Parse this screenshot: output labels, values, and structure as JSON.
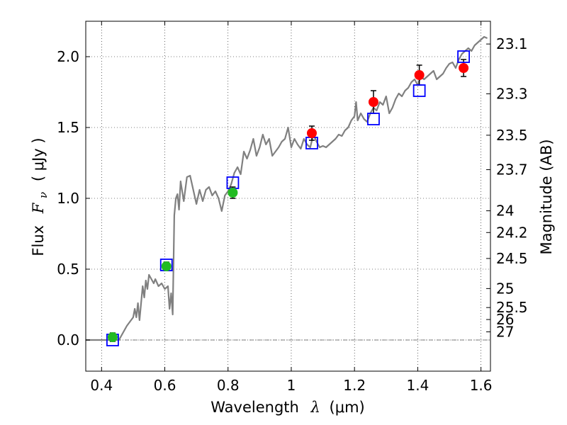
{
  "chart_data": {
    "type": "scatter",
    "xlabel_text": "Wavelength",
    "xlabel_symbol": "λ",
    "xlabel_unit": "(μm)",
    "ylabel_text": "Flux",
    "ylabel_symbol": "F",
    "ylabel_subscript": "ν",
    "ylabel_unit": "( μJy )",
    "y2label": "Magnitude (AB)",
    "xlim": [
      0.35,
      1.63
    ],
    "ylim": [
      -0.22,
      2.25
    ],
    "grid": true,
    "x_ticks": [
      0.4,
      0.6,
      0.8,
      1.0,
      1.2,
      1.4,
      1.6
    ],
    "x_tick_labels": [
      "0.4",
      "0.6",
      "0.8",
      "1",
      "1.2",
      "1.4",
      "1.6"
    ],
    "y_ticks": [
      0.0,
      0.5,
      1.0,
      1.5,
      2.0
    ],
    "y_tick_labels": [
      "0.0",
      "0.5",
      "1.0",
      "1.5",
      "2.0"
    ],
    "magnitude_ticks": [
      {
        "label": "23.1",
        "value": 23.1
      },
      {
        "label": "23.3",
        "value": 23.3
      },
      {
        "label": "23.5",
        "value": 23.5
      },
      {
        "label": "23.7",
        "value": 23.7
      },
      {
        "label": "24",
        "value": 24.0
      },
      {
        "label": "24.2",
        "value": 24.2
      },
      {
        "label": "24.5",
        "value": 24.5
      },
      {
        "label": "25",
        "value": 25.0
      },
      {
        "label": "25.5",
        "value": 25.5
      },
      {
        "label": "26",
        "value": 26.0
      },
      {
        "label": "27",
        "value": 27.0
      }
    ],
    "series": [
      {
        "name": "model_spectrum",
        "kind": "line",
        "color": "#808080",
        "x": [
          0.35,
          0.4,
          0.455,
          0.47,
          0.48,
          0.5,
          0.505,
          0.51,
          0.515,
          0.52,
          0.53,
          0.535,
          0.54,
          0.545,
          0.55,
          0.56,
          0.565,
          0.57,
          0.58,
          0.59,
          0.6,
          0.61,
          0.615,
          0.62,
          0.625,
          0.63,
          0.635,
          0.64,
          0.645,
          0.65,
          0.655,
          0.66,
          0.67,
          0.68,
          0.69,
          0.7,
          0.71,
          0.72,
          0.73,
          0.74,
          0.75,
          0.76,
          0.77,
          0.78,
          0.79,
          0.8,
          0.81,
          0.82,
          0.83,
          0.84,
          0.85,
          0.86,
          0.87,
          0.88,
          0.89,
          0.9,
          0.91,
          0.92,
          0.93,
          0.94,
          0.95,
          0.96,
          0.97,
          0.98,
          0.99,
          1.0,
          1.01,
          1.02,
          1.03,
          1.04,
          1.05,
          1.06,
          1.07,
          1.08,
          1.09,
          1.1,
          1.11,
          1.12,
          1.13,
          1.14,
          1.15,
          1.16,
          1.17,
          1.18,
          1.19,
          1.2,
          1.205,
          1.21,
          1.22,
          1.23,
          1.24,
          1.25,
          1.26,
          1.27,
          1.28,
          1.29,
          1.3,
          1.31,
          1.32,
          1.33,
          1.34,
          1.35,
          1.36,
          1.37,
          1.38,
          1.39,
          1.4,
          1.41,
          1.42,
          1.43,
          1.44,
          1.45,
          1.46,
          1.47,
          1.48,
          1.49,
          1.5,
          1.51,
          1.52,
          1.53,
          1.54,
          1.55,
          1.56,
          1.57,
          1.58,
          1.59,
          1.6,
          1.61,
          1.62
        ],
        "y": [
          0.0,
          0.0,
          0.0,
          0.06,
          0.1,
          0.16,
          0.22,
          0.16,
          0.26,
          0.14,
          0.38,
          0.3,
          0.42,
          0.36,
          0.46,
          0.42,
          0.4,
          0.43,
          0.38,
          0.4,
          0.36,
          0.38,
          0.22,
          0.33,
          0.18,
          0.88,
          1.0,
          1.03,
          0.92,
          1.12,
          1.05,
          0.98,
          1.15,
          1.16,
          1.06,
          0.96,
          1.06,
          0.98,
          1.06,
          1.08,
          1.02,
          1.05,
          1.0,
          0.91,
          1.02,
          1.05,
          1.1,
          1.18,
          1.22,
          1.17,
          1.33,
          1.28,
          1.34,
          1.42,
          1.3,
          1.36,
          1.45,
          1.38,
          1.42,
          1.3,
          1.33,
          1.36,
          1.4,
          1.42,
          1.5,
          1.36,
          1.42,
          1.38,
          1.35,
          1.42,
          1.38,
          1.36,
          1.45,
          1.4,
          1.36,
          1.37,
          1.36,
          1.38,
          1.4,
          1.42,
          1.45,
          1.44,
          1.48,
          1.5,
          1.55,
          1.58,
          1.68,
          1.55,
          1.6,
          1.56,
          1.54,
          1.6,
          1.64,
          1.62,
          1.68,
          1.66,
          1.72,
          1.6,
          1.64,
          1.7,
          1.74,
          1.72,
          1.76,
          1.78,
          1.82,
          1.84,
          1.8,
          1.86,
          1.84,
          1.86,
          1.88,
          1.9,
          1.84,
          1.86,
          1.88,
          1.92,
          1.95,
          1.96,
          1.92,
          1.98,
          2.02,
          2.04,
          2.06,
          2.04,
          2.08,
          2.1,
          2.12,
          2.14,
          2.13
        ]
      },
      {
        "name": "model_photometry",
        "kind": "open_square",
        "color": "#0000ff",
        "x": [
          0.435,
          0.605,
          0.815,
          1.065,
          1.26,
          1.405,
          1.545
        ],
        "y": [
          0.0,
          0.53,
          1.11,
          1.39,
          1.56,
          1.76,
          2.0
        ]
      },
      {
        "name": "observed_optical",
        "kind": "filled_circle",
        "color": "#22bb22",
        "x": [
          0.435,
          0.605,
          0.815
        ],
        "y": [
          0.02,
          0.52,
          1.04
        ],
        "yerr": [
          0.03,
          0.03,
          0.04
        ]
      },
      {
        "name": "observed_nir",
        "kind": "filled_circle",
        "color": "#ff0000",
        "x": [
          1.065,
          1.26,
          1.405,
          1.545
        ],
        "y": [
          1.46,
          1.68,
          1.87,
          1.92
        ],
        "yerr": [
          0.05,
          0.08,
          0.07,
          0.06
        ]
      }
    ]
  }
}
